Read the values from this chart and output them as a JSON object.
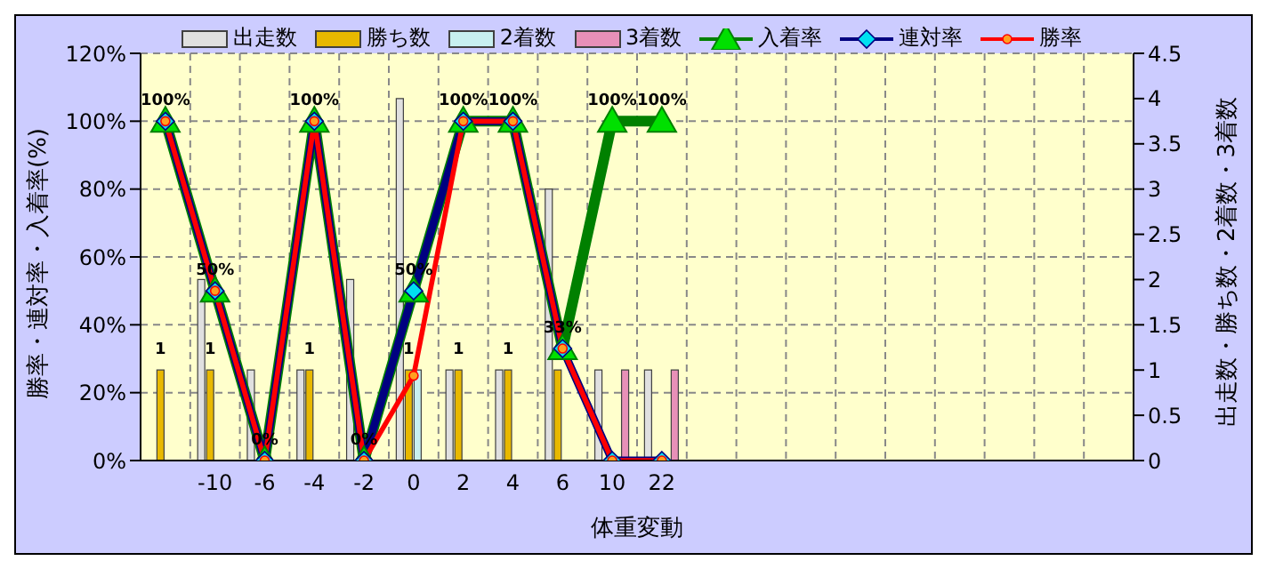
{
  "chart_data": {
    "type": "bar",
    "xlabel": "体重変動",
    "ylabel": "勝率・連対率・入着率(%)",
    "y2label": "出走数・勝ち数・2着数・3着数",
    "categories": [
      null,
      "-10",
      "-6",
      "-4",
      "-2",
      "0",
      "2",
      "4",
      "6",
      "10",
      "22",
      null,
      null,
      null,
      null,
      null,
      null,
      null,
      null,
      null
    ],
    "series": [
      {
        "name": "出走数",
        "type": "bar",
        "axis": "y2",
        "color": "#e0e0e0",
        "values": [
          0,
          2,
          1,
          1,
          2,
          4,
          1,
          1,
          3,
          1,
          1,
          null,
          null,
          null,
          null,
          null,
          null,
          null,
          null,
          null
        ]
      },
      {
        "name": "勝ち数",
        "type": "bar",
        "axis": "y2",
        "color": "#e8b800",
        "values": [
          1,
          1,
          0,
          1,
          0,
          1,
          1,
          1,
          1,
          0,
          0,
          null,
          null,
          null,
          null,
          null,
          null,
          null,
          null,
          null
        ],
        "value_labels": [
          "1",
          "1",
          null,
          "1",
          null,
          "1",
          "1",
          "1",
          null,
          null,
          null,
          null,
          null,
          null,
          null,
          null,
          null,
          null,
          null,
          null
        ]
      },
      {
        "name": "2着数",
        "type": "bar",
        "axis": "y2",
        "color": "#c8f0f0",
        "values": [
          0,
          0,
          0,
          0,
          0,
          1,
          0,
          0,
          0,
          0,
          0,
          null,
          null,
          null,
          null,
          null,
          null,
          null,
          null,
          null
        ]
      },
      {
        "name": "3着数",
        "type": "bar",
        "axis": "y2",
        "color": "#e890b8",
        "values": [
          0,
          0,
          0,
          0,
          0,
          0,
          0,
          0,
          0,
          1,
          1,
          null,
          null,
          null,
          null,
          null,
          null,
          null,
          null,
          null
        ]
      },
      {
        "name": "入着率",
        "type": "line",
        "color": "#008000",
        "marker": "triangle",
        "values": [
          100,
          50,
          0,
          100,
          0,
          50,
          100,
          100,
          33,
          100,
          100,
          null,
          null,
          null,
          null,
          null,
          null,
          null,
          null,
          null
        ],
        "value_labels": [
          "100%",
          "50%",
          "0%",
          "100%",
          "0%",
          "50%",
          "100%",
          "100%",
          "33%",
          "100%",
          "100%",
          null,
          null,
          null,
          null,
          null,
          null,
          null,
          null,
          null
        ]
      },
      {
        "name": "連対率",
        "type": "line",
        "color": "#000080",
        "marker": "diamond",
        "values": [
          100,
          50,
          0,
          100,
          0,
          50,
          100,
          100,
          33,
          0,
          0,
          null,
          null,
          null,
          null,
          null,
          null,
          null,
          null,
          null
        ]
      },
      {
        "name": "勝率",
        "type": "line",
        "color": "#ff0000",
        "marker": "circle",
        "values": [
          100,
          50,
          0,
          100,
          0,
          25,
          100,
          100,
          33,
          0,
          0,
          null,
          null,
          null,
          null,
          null,
          null,
          null,
          null,
          null
        ]
      }
    ],
    "ylim": [
      0,
      120
    ],
    "yticks": [
      {
        "value": 0,
        "label": "0%"
      },
      {
        "value": 20,
        "label": "20%"
      },
      {
        "value": 40,
        "label": "40%"
      },
      {
        "value": 60,
        "label": "60%"
      },
      {
        "value": 80,
        "label": "80%"
      },
      {
        "value": 100,
        "label": "100%"
      },
      {
        "value": 120,
        "label": "120%"
      }
    ],
    "y2lim": [
      0,
      4.5
    ],
    "y2ticks": [
      0,
      0.5,
      1,
      1.5,
      2,
      2.5,
      3,
      3.5,
      4,
      4.5
    ],
    "grid": true,
    "legend": "top"
  }
}
